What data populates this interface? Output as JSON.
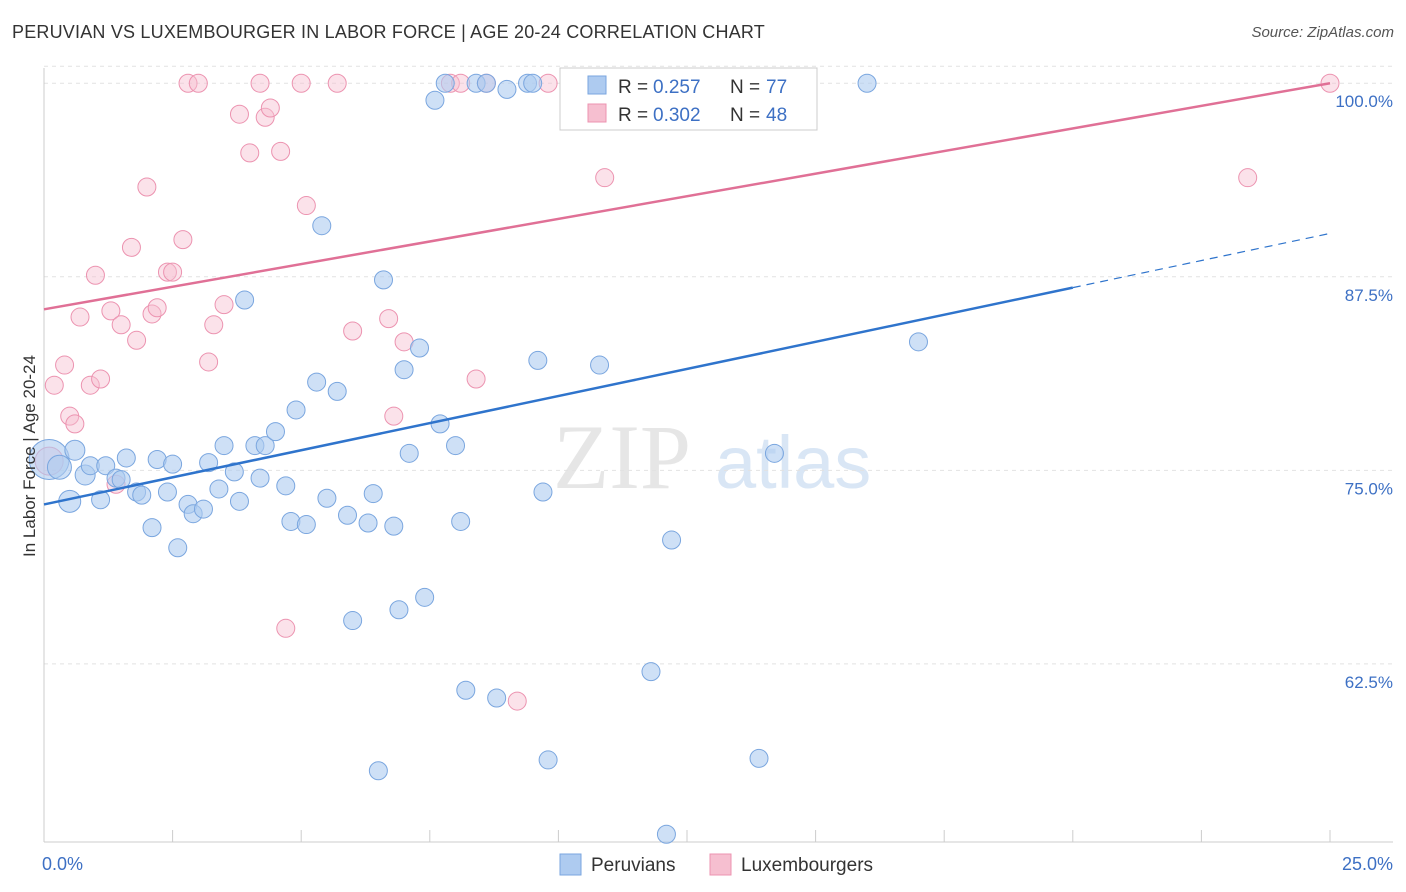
{
  "chart_data": {
    "type": "scatter",
    "title": "PERUVIAN VS LUXEMBOURGER IN LABOR FORCE | AGE 20-24 CORRELATION CHART",
    "source": "Source: ZipAtlas.com",
    "ylabel": "In Labor Force | Age 20-24",
    "xlim": [
      0,
      25
    ],
    "ylim": [
      51,
      101.5
    ],
    "x_tick_labels": [
      "0.0%",
      "25.0%"
    ],
    "y_ticks": [
      62.5,
      75.0,
      87.5,
      100.0
    ],
    "y_tick_labels": [
      "62.5%",
      "75.0%",
      "87.5%",
      "100.0%"
    ],
    "watermark": {
      "zip": "ZIP",
      "atlas": "atlas"
    },
    "legend": {
      "r_label": "R =",
      "n_label": "N =",
      "entries": [
        {
          "name": "Peruvians",
          "r": "0.257",
          "n": "77"
        },
        {
          "name": "Luxembourgers",
          "r": "0.302",
          "n": "48"
        }
      ]
    },
    "colors": {
      "peruvians_fill": "#aecbf0",
      "peruvians_stroke": "#7aa6df",
      "peruvians_line": "#2f74cc",
      "luxembourgers_fill": "#f6bfd0",
      "luxembourgers_stroke": "#ec93b0",
      "luxembourgers_line": "#e07096"
    },
    "series": [
      {
        "name": "Peruvians",
        "trend": {
          "x0": 0,
          "y0": 72.8,
          "x1": 20,
          "y1": 86.8,
          "dash_to_x": 25,
          "dash_to_y": 90.3
        },
        "points": [
          [
            0.1,
            75.7,
            20
          ],
          [
            0.3,
            75.2,
            12
          ],
          [
            0.5,
            73.0,
            11
          ],
          [
            0.6,
            76.3,
            10
          ],
          [
            0.8,
            74.7,
            10
          ],
          [
            0.9,
            75.3,
            9
          ],
          [
            1.1,
            73.1,
            9
          ],
          [
            1.2,
            75.3,
            9
          ],
          [
            1.4,
            74.5,
            9
          ],
          [
            1.5,
            74.4,
            9
          ],
          [
            1.6,
            75.8,
            9
          ],
          [
            1.8,
            73.6,
            9
          ],
          [
            1.9,
            73.4,
            9
          ],
          [
            2.1,
            71.3,
            9
          ],
          [
            2.2,
            75.7,
            9
          ],
          [
            2.4,
            73.6,
            9
          ],
          [
            2.5,
            75.4,
            9
          ],
          [
            2.6,
            70.0,
            9
          ],
          [
            2.8,
            72.8,
            9
          ],
          [
            2.9,
            72.2,
            9
          ],
          [
            3.1,
            72.5,
            9
          ],
          [
            3.2,
            75.5,
            9
          ],
          [
            3.4,
            73.8,
            9
          ],
          [
            3.5,
            76.6,
            9
          ],
          [
            3.7,
            74.9,
            9
          ],
          [
            3.8,
            73.0,
            9
          ],
          [
            3.9,
            86.0,
            9
          ],
          [
            4.1,
            76.6,
            9
          ],
          [
            4.2,
            74.5,
            9
          ],
          [
            4.3,
            76.6,
            9
          ],
          [
            4.5,
            77.5,
            9
          ],
          [
            4.7,
            74.0,
            9
          ],
          [
            4.8,
            71.7,
            9
          ],
          [
            4.9,
            78.9,
            9
          ],
          [
            5.1,
            71.5,
            9
          ],
          [
            5.3,
            80.7,
            9
          ],
          [
            5.4,
            90.8,
            9
          ],
          [
            5.5,
            73.2,
            9
          ],
          [
            5.7,
            80.1,
            9
          ],
          [
            5.9,
            72.1,
            9
          ],
          [
            6.0,
            65.3,
            9
          ],
          [
            6.3,
            71.6,
            9
          ],
          [
            6.4,
            73.5,
            9
          ],
          [
            6.5,
            55.6,
            9
          ],
          [
            6.6,
            87.3,
            9
          ],
          [
            6.8,
            71.4,
            9
          ],
          [
            6.9,
            66.0,
            9
          ],
          [
            7.0,
            81.5,
            9
          ],
          [
            7.1,
            76.1,
            9
          ],
          [
            7.3,
            82.9,
            9
          ],
          [
            7.4,
            66.8,
            9
          ],
          [
            7.6,
            98.9,
            9
          ],
          [
            7.7,
            78.0,
            9
          ],
          [
            7.8,
            100.0,
            9
          ],
          [
            8.0,
            76.6,
            9
          ],
          [
            8.1,
            71.7,
            9
          ],
          [
            8.2,
            60.8,
            9
          ],
          [
            8.4,
            100.0,
            9
          ],
          [
            8.8,
            60.3,
            9
          ],
          [
            9.0,
            99.6,
            9
          ],
          [
            9.4,
            100.0,
            9
          ],
          [
            9.6,
            82.1,
            9
          ],
          [
            9.7,
            73.6,
            9
          ],
          [
            9.8,
            56.3,
            9
          ],
          [
            10.8,
            81.8,
            9
          ],
          [
            11.8,
            62.0,
            9
          ],
          [
            12.1,
            51.5,
            9
          ],
          [
            12.2,
            70.5,
            9
          ],
          [
            12.4,
            100.0,
            9
          ],
          [
            13.9,
            56.4,
            9
          ],
          [
            14.2,
            76.1,
            9
          ],
          [
            14.1,
            100.0,
            9
          ],
          [
            14.3,
            100.0,
            9
          ],
          [
            16.0,
            100.0,
            9
          ],
          [
            17.0,
            83.3,
            9
          ],
          [
            9.5,
            100.0,
            9
          ],
          [
            8.6,
            100.0,
            9
          ]
        ]
      },
      {
        "name": "Luxembourgers",
        "trend": {
          "x0": 0,
          "y0": 85.4,
          "x1": 25,
          "y1": 100.0
        },
        "points": [
          [
            0.1,
            75.6,
            14
          ],
          [
            0.2,
            80.5,
            9
          ],
          [
            0.4,
            81.8,
            9
          ],
          [
            0.5,
            78.5,
            9
          ],
          [
            0.6,
            78.0,
            9
          ],
          [
            0.7,
            84.9,
            9
          ],
          [
            0.9,
            80.5,
            9
          ],
          [
            1.0,
            87.6,
            9
          ],
          [
            1.1,
            80.9,
            9
          ],
          [
            1.3,
            85.3,
            9
          ],
          [
            1.4,
            74.1,
            9
          ],
          [
            1.5,
            84.4,
            9
          ],
          [
            1.7,
            89.4,
            9
          ],
          [
            1.8,
            83.4,
            9
          ],
          [
            2.0,
            93.3,
            9
          ],
          [
            2.1,
            85.1,
            9
          ],
          [
            2.2,
            85.5,
            9
          ],
          [
            2.4,
            87.8,
            9
          ],
          [
            2.5,
            87.8,
            9
          ],
          [
            2.7,
            89.9,
            9
          ],
          [
            2.8,
            100.0,
            9
          ],
          [
            3.0,
            100.0,
            9
          ],
          [
            3.2,
            82.0,
            9
          ],
          [
            3.3,
            84.4,
            9
          ],
          [
            3.5,
            85.7,
            9
          ],
          [
            3.8,
            98.0,
            9
          ],
          [
            4.0,
            95.5,
            9
          ],
          [
            4.2,
            100.0,
            9
          ],
          [
            4.3,
            97.8,
            9
          ],
          [
            4.4,
            98.4,
            9
          ],
          [
            4.6,
            95.6,
            9
          ],
          [
            4.7,
            64.8,
            9
          ],
          [
            5.0,
            100.0,
            9
          ],
          [
            5.1,
            92.1,
            9
          ],
          [
            5.7,
            100.0,
            9
          ],
          [
            6.0,
            84.0,
            9
          ],
          [
            6.7,
            84.8,
            9
          ],
          [
            6.8,
            78.5,
            9
          ],
          [
            7.0,
            83.3,
            9
          ],
          [
            7.9,
            100.0,
            9
          ],
          [
            8.1,
            100.0,
            9
          ],
          [
            8.4,
            80.9,
            9
          ],
          [
            8.6,
            100.0,
            9
          ],
          [
            9.2,
            60.1,
            9
          ],
          [
            9.8,
            100.0,
            9
          ],
          [
            10.9,
            93.9,
            9
          ],
          [
            23.4,
            93.9,
            9
          ],
          [
            25.0,
            100.0,
            9
          ]
        ]
      }
    ]
  }
}
